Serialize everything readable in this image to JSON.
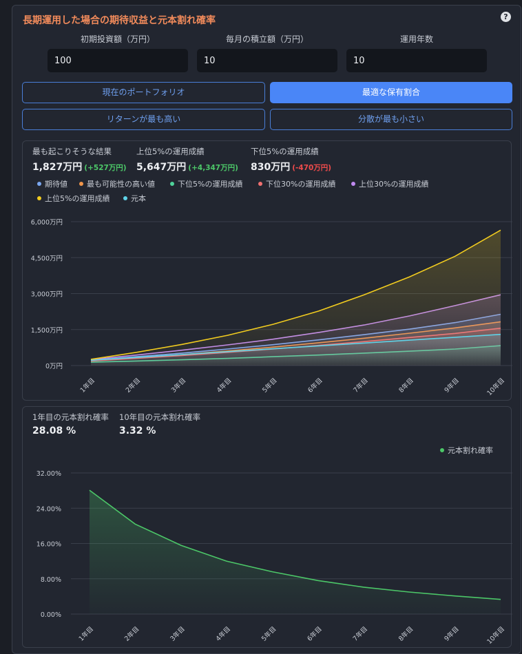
{
  "title": "長期運用した場合の期待収益と元本割れ確率",
  "help_glyph": "?",
  "inputs": [
    {
      "label": "初期投資額（万円）",
      "value": "100"
    },
    {
      "label": "毎月の積立額（万円）",
      "value": "10"
    },
    {
      "label": "運用年数",
      "value": "10"
    }
  ],
  "buttons": [
    {
      "label": "現在のポートフォリオ",
      "active": false
    },
    {
      "label": "最適な保有割合",
      "active": true
    },
    {
      "label": "リターンが最も高い",
      "active": false
    },
    {
      "label": "分散が最も小さい",
      "active": false
    }
  ],
  "summary": {
    "likely": {
      "label": "最も起こりそうな結果",
      "value": "1,827万円",
      "delta": "(+527万円)"
    },
    "top5": {
      "label": "上位5%の運用成績",
      "value": "5,647万円",
      "delta": "(+4,347万円)"
    },
    "bottom5": {
      "label": "下位5%の運用成績",
      "value": "830万円",
      "delta": "(-470万円)"
    }
  },
  "loss_summary": {
    "year1": {
      "label": "1年目の元本割れ確率",
      "value": "28.08 %"
    },
    "year10": {
      "label": "10年目の元本割れ確率",
      "value": "3.32 %"
    }
  },
  "colors": {
    "accent": "#4a86f7",
    "title": "#f28b5b",
    "positive": "#4cc768",
    "negative": "#ef4b4b"
  },
  "chart_data": [
    {
      "type": "area",
      "categories": [
        "1年目",
        "2年目",
        "3年目",
        "4年目",
        "5年目",
        "6年目",
        "7年目",
        "8年目",
        "9年目",
        "10年目"
      ],
      "y_ticks": [
        "0万円",
        "1,500万円",
        "3,000万円",
        "4,500万円",
        "6,000万円"
      ],
      "ylim": [
        0,
        6000
      ],
      "legend_position": "top",
      "series": [
        {
          "name": "期待値",
          "color": "#7aa7f0",
          "values": [
            220,
            370,
            520,
            690,
            870,
            1070,
            1290,
            1520,
            1790,
            2140
          ]
        },
        {
          "name": "最も可能性の高い値",
          "color": "#f0954a",
          "values": [
            200,
            330,
            460,
            610,
            770,
            950,
            1140,
            1350,
            1570,
            1827
          ]
        },
        {
          "name": "下位5%の運用成績",
          "color": "#4fd39a",
          "values": [
            140,
            190,
            240,
            300,
            370,
            440,
            520,
            600,
            690,
            830
          ]
        },
        {
          "name": "下位30%の運用成績",
          "color": "#f07070",
          "values": [
            190,
            300,
            420,
            550,
            690,
            840,
            1000,
            1170,
            1340,
            1560
          ]
        },
        {
          "name": "上位30%の運用成績",
          "color": "#c08af0",
          "values": [
            250,
            440,
            640,
            860,
            1100,
            1380,
            1690,
            2070,
            2500,
            2950
          ]
        },
        {
          "name": "上位5%の運用成績",
          "color": "#f2cc1f",
          "values": [
            260,
            550,
            880,
            1260,
            1720,
            2270,
            2950,
            3700,
            4560,
            5647
          ]
        },
        {
          "name": "元本",
          "color": "#5fd3e8",
          "values": [
            220,
            340,
            460,
            580,
            700,
            820,
            940,
            1060,
            1180,
            1300
          ]
        }
      ]
    },
    {
      "type": "area",
      "categories": [
        "1年目",
        "2年目",
        "3年目",
        "4年目",
        "5年目",
        "6年目",
        "7年目",
        "8年目",
        "9年目",
        "10年目"
      ],
      "y_ticks": [
        "0.00%",
        "8.00%",
        "16.00%",
        "24.00%",
        "32.00%"
      ],
      "ylim": [
        0,
        32
      ],
      "legend_position": "top-right",
      "series": [
        {
          "name": "元本割れ確率",
          "color": "#4cc768",
          "values": [
            28.08,
            20.4,
            15.6,
            12.0,
            9.6,
            7.6,
            6.1,
            5.0,
            4.1,
            3.32
          ]
        }
      ]
    }
  ]
}
